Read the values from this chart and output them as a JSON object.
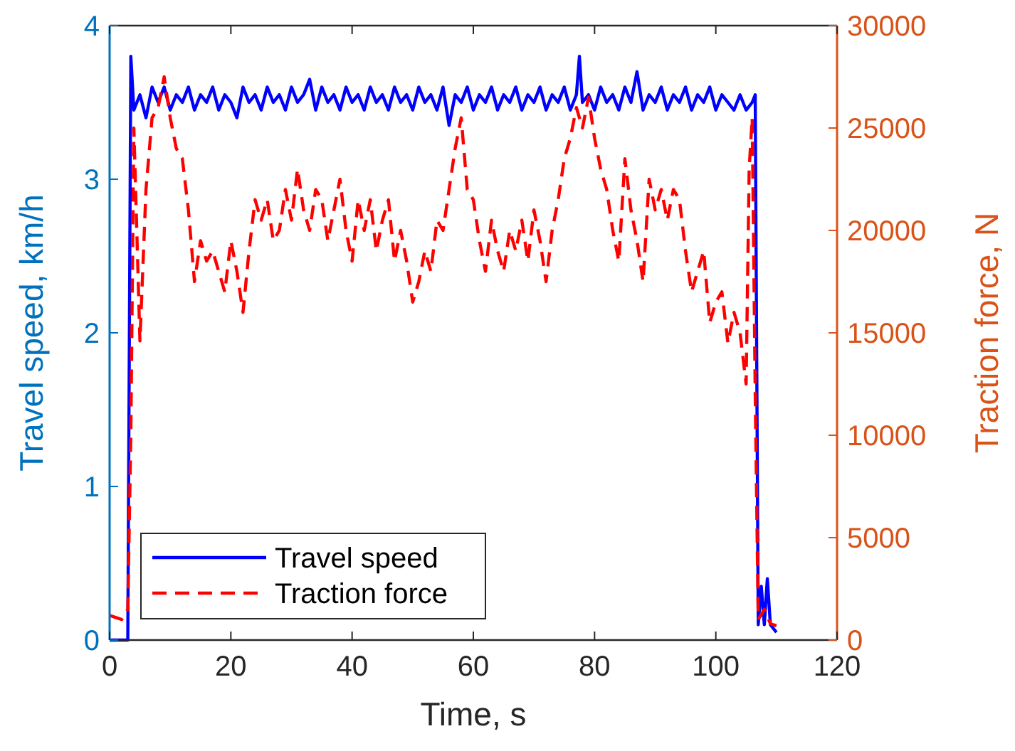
{
  "chart_data": {
    "type": "line",
    "xlabel": "Time, s",
    "ylabel": "Travel speed, km/h",
    "y2label": "Traction force, N",
    "xlim": [
      0,
      120
    ],
    "xticks": [
      0,
      20,
      40,
      60,
      80,
      100,
      120
    ],
    "ylim": [
      0,
      4
    ],
    "yticks": [
      0,
      1,
      2,
      3,
      4
    ],
    "y2lim": [
      0,
      30000
    ],
    "y2ticks": [
      0,
      5000,
      10000,
      15000,
      20000,
      25000,
      30000
    ],
    "grid": false,
    "legend": "bottom left",
    "series": [
      {
        "name": "Travel speed",
        "color": "#0000ff",
        "line_style": "solid",
        "x": [
          0,
          3,
          3.5,
          4,
          5,
          6,
          7,
          8,
          9,
          10,
          11,
          12,
          13,
          14,
          15,
          16,
          17,
          18,
          19,
          20,
          21,
          22,
          23,
          24,
          25,
          26,
          27,
          28,
          29,
          30,
          31,
          32,
          33,
          34,
          35,
          36,
          37,
          38,
          39,
          40,
          41,
          42,
          43,
          44,
          45,
          46,
          47,
          48,
          49,
          50,
          51,
          52,
          53,
          54,
          55,
          56,
          57,
          58,
          59,
          60,
          61,
          62,
          63,
          64,
          65,
          66,
          67,
          68,
          69,
          70,
          71,
          72,
          73,
          74,
          75,
          76,
          77,
          77.5,
          78,
          79,
          80,
          81,
          82,
          83,
          84,
          85,
          86,
          87,
          88,
          89,
          90,
          91,
          92,
          93,
          94,
          95,
          96,
          97,
          98,
          99,
          100,
          101,
          102,
          103,
          104,
          105,
          106,
          106.5,
          107,
          107.5,
          108,
          108.5,
          109,
          110
        ],
        "values": [
          0,
          0,
          3.8,
          3.45,
          3.55,
          3.4,
          3.6,
          3.5,
          3.6,
          3.45,
          3.55,
          3.5,
          3.6,
          3.45,
          3.55,
          3.5,
          3.6,
          3.45,
          3.55,
          3.5,
          3.4,
          3.6,
          3.5,
          3.55,
          3.45,
          3.6,
          3.5,
          3.55,
          3.45,
          3.6,
          3.5,
          3.55,
          3.65,
          3.45,
          3.6,
          3.5,
          3.55,
          3.45,
          3.6,
          3.5,
          3.55,
          3.45,
          3.6,
          3.5,
          3.55,
          3.45,
          3.6,
          3.5,
          3.55,
          3.45,
          3.6,
          3.5,
          3.55,
          3.45,
          3.6,
          3.35,
          3.55,
          3.5,
          3.6,
          3.45,
          3.55,
          3.5,
          3.6,
          3.45,
          3.55,
          3.5,
          3.6,
          3.45,
          3.55,
          3.5,
          3.6,
          3.45,
          3.55,
          3.5,
          3.6,
          3.45,
          3.55,
          3.8,
          3.5,
          3.55,
          3.45,
          3.6,
          3.5,
          3.55,
          3.45,
          3.6,
          3.5,
          3.7,
          3.45,
          3.55,
          3.5,
          3.6,
          3.45,
          3.55,
          3.5,
          3.6,
          3.45,
          3.55,
          3.5,
          3.6,
          3.45,
          3.55,
          3.5,
          3.45,
          3.55,
          3.45,
          3.5,
          3.55,
          0.1,
          0.35,
          0.1,
          0.4,
          0.1,
          0.05
        ]
      },
      {
        "name": "Traction force",
        "color": "#ff0000",
        "line_style": "dashed",
        "axis": "y2",
        "x": [
          0,
          2,
          3,
          3.5,
          4,
          5,
          6,
          7,
          8,
          9,
          10,
          11,
          12,
          13,
          14,
          15,
          16,
          17,
          18,
          19,
          20,
          21,
          22,
          23,
          24,
          25,
          26,
          27,
          28,
          29,
          30,
          31,
          32,
          33,
          34,
          35,
          36,
          37,
          38,
          39,
          40,
          41,
          42,
          43,
          44,
          45,
          46,
          47,
          48,
          49,
          50,
          51,
          52,
          53,
          54,
          55,
          56,
          57,
          58,
          59,
          60,
          61,
          62,
          63,
          64,
          65,
          66,
          67,
          68,
          69,
          70,
          71,
          72,
          73,
          74,
          75,
          76,
          77,
          78,
          79,
          80,
          81,
          82,
          83,
          84,
          85,
          86,
          87,
          88,
          89,
          90,
          91,
          92,
          93,
          94,
          95,
          96,
          97,
          98,
          99,
          100,
          101,
          102,
          103,
          104,
          105,
          105.5,
          106,
          106.5,
          107,
          108,
          109,
          110
        ],
        "values": [
          1200,
          1000,
          1500,
          10000,
          25000,
          14600,
          22000,
          25500,
          26000,
          27500,
          25500,
          24000,
          23500,
          21000,
          17500,
          19500,
          18500,
          19000,
          18000,
          17000,
          19500,
          18000,
          16000,
          19000,
          21500,
          20500,
          21500,
          19500,
          20000,
          22000,
          20500,
          23000,
          21000,
          20000,
          22000,
          21500,
          19500,
          21000,
          22500,
          20000,
          18500,
          21500,
          20000,
          21500,
          19000,
          20500,
          21500,
          18500,
          20000,
          18500,
          16500,
          17500,
          19000,
          18000,
          20500,
          20000,
          22000,
          24000,
          25500,
          22000,
          21500,
          19500,
          18000,
          20500,
          19000,
          18000,
          20000,
          19000,
          20500,
          18500,
          21000,
          19500,
          17500,
          20000,
          21500,
          23500,
          24500,
          26000,
          25000,
          26500,
          24500,
          23000,
          22000,
          20000,
          18500,
          23500,
          21000,
          19500,
          17500,
          22500,
          21000,
          22000,
          20500,
          22000,
          21500,
          19000,
          17000,
          18000,
          19000,
          15500,
          16500,
          17000,
          14500,
          16000,
          15000,
          12500,
          23000,
          25500,
          12000,
          1000,
          1500,
          800,
          700
        ]
      }
    ]
  }
}
